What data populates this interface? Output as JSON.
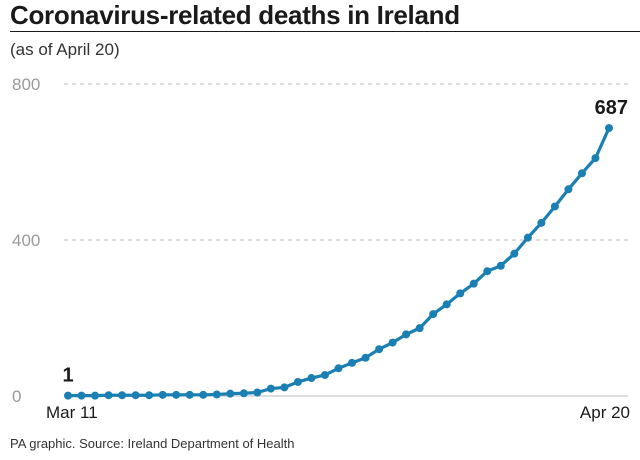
{
  "title": "Coronavirus-related deaths in Ireland",
  "subtitle": "(as of April 20)",
  "source": "PA graphic. Source: Ireland Department of Health",
  "colors": {
    "line": "#1a7fb3",
    "grid": "#bdbdbd",
    "text": "#1a1a1a"
  },
  "chart_data": {
    "type": "line",
    "title": "Coronavirus-related deaths in Ireland",
    "subtitle": "(as of April 20)",
    "xlabel": "",
    "ylabel": "",
    "ylim": [
      0,
      800
    ],
    "yticks": [
      "0",
      "400",
      "800"
    ],
    "xtick_labels": [
      "Mar 11",
      "Apr 20"
    ],
    "grid": "horizontal dashed",
    "data_labels": [
      {
        "index": 0,
        "text": "1"
      },
      {
        "index": 40,
        "text": "687"
      }
    ],
    "series": [
      {
        "x": [
          "Mar 11",
          "Mar 12",
          "Mar 13",
          "Mar 14",
          "Mar 15",
          "Mar 16",
          "Mar 17",
          "Mar 18",
          "Mar 19",
          "Mar 20",
          "Mar 21",
          "Mar 22",
          "Mar 23",
          "Mar 24",
          "Mar 25",
          "Mar 26",
          "Mar 27",
          "Mar 28",
          "Mar 29",
          "Mar 30",
          "Mar 31",
          "Apr 1",
          "Apr 2",
          "Apr 3",
          "Apr 4",
          "Apr 5",
          "Apr 6",
          "Apr 7",
          "Apr 8",
          "Apr 9",
          "Apr 10",
          "Apr 11",
          "Apr 12",
          "Apr 13",
          "Apr 14",
          "Apr 15",
          "Apr 16",
          "Apr 17",
          "Apr 18",
          "Apr 19",
          "Apr 20"
        ],
        "values": [
          1,
          1,
          1,
          2,
          2,
          2,
          2,
          3,
          3,
          3,
          3,
          4,
          6,
          7,
          9,
          19,
          22,
          36,
          46,
          54,
          71,
          85,
          98,
          120,
          137,
          158,
          174,
          210,
          235,
          263,
          288,
          320,
          334,
          365,
          406,
          444,
          486,
          530,
          571,
          610,
          687
        ]
      }
    ]
  }
}
